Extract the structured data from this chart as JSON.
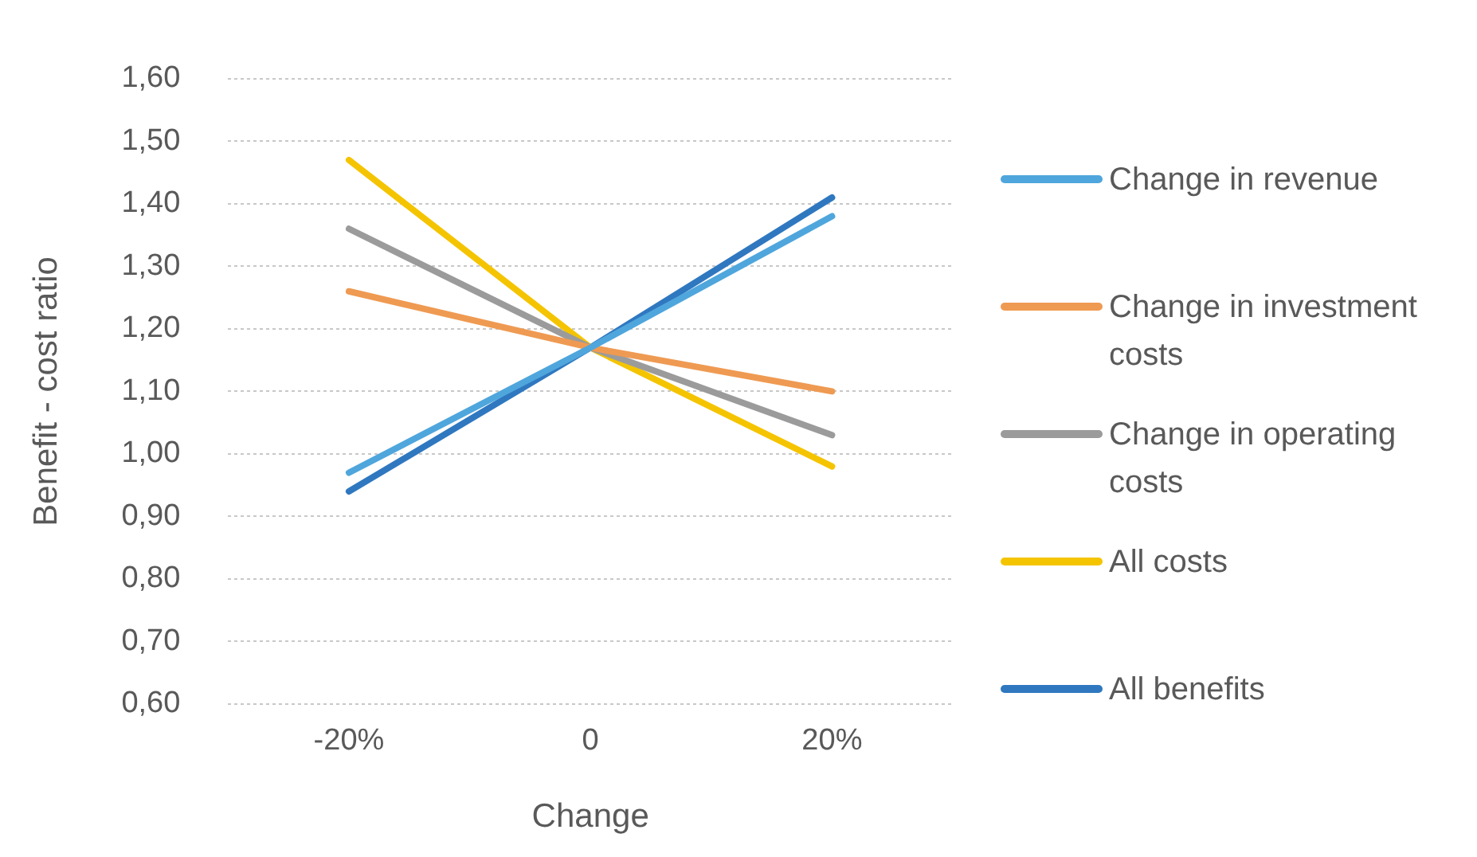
{
  "chart_data": {
    "type": "line",
    "xlabel": "Change",
    "ylabel": "Benefit - cost ratio",
    "categories": [
      "-20%",
      "0",
      "20%"
    ],
    "series": [
      {
        "name": "Change in revenue",
        "color": "#4fa6dc",
        "values": [
          0.97,
          1.17,
          1.38
        ]
      },
      {
        "name": "Change in investment costs",
        "color": "#ef9a52",
        "values": [
          1.26,
          1.17,
          1.1
        ]
      },
      {
        "name": "Change in operating costs",
        "color": "#9b9b9b",
        "values": [
          1.36,
          1.17,
          1.03
        ]
      },
      {
        "name": "All costs",
        "color": "#f5c400",
        "values": [
          1.47,
          1.17,
          0.98
        ]
      },
      {
        "name": "All benefits",
        "color": "#2f78c0",
        "values": [
          0.94,
          1.17,
          1.41
        ]
      }
    ],
    "ylim": [
      0.6,
      1.6
    ],
    "yticks": [
      {
        "value": 0.6,
        "label": "0,60"
      },
      {
        "value": 0.7,
        "label": "0,70"
      },
      {
        "value": 0.8,
        "label": "0,80"
      },
      {
        "value": 0.9,
        "label": "0,90"
      },
      {
        "value": 1.0,
        "label": "1,00"
      },
      {
        "value": 1.1,
        "label": "1,10"
      },
      {
        "value": 1.2,
        "label": "1,20"
      },
      {
        "value": 1.3,
        "label": "1,30"
      },
      {
        "value": 1.4,
        "label": "1,40"
      },
      {
        "value": 1.5,
        "label": "1,50"
      },
      {
        "value": 1.6,
        "label": "1,60"
      }
    ],
    "grid": "y",
    "legend": "right",
    "marker": "none",
    "line_style": "solid"
  }
}
